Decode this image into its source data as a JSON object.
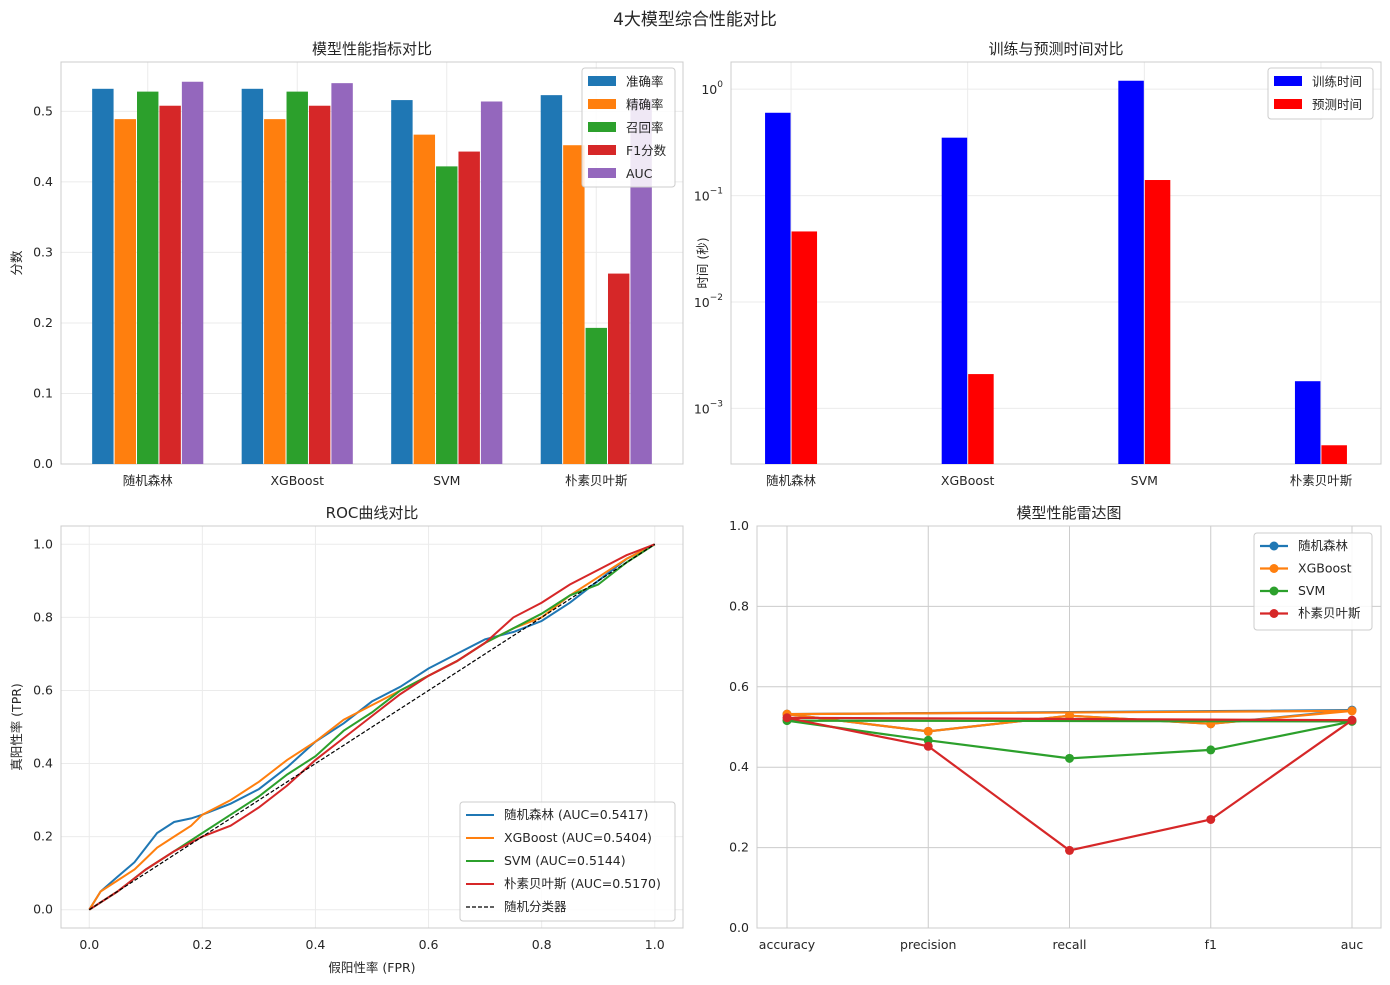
{
  "figure": {
    "title": "4大模型综合性能对比"
  },
  "chart_data": [
    {
      "type": "bar",
      "title": "模型性能指标对比",
      "xlabel": "",
      "ylabel": "分数",
      "ylim": [
        0,
        0.57
      ],
      "yticks": [
        0.0,
        0.1,
        0.2,
        0.3,
        0.4,
        0.5
      ],
      "categories": [
        "随机森林",
        "XGBoost",
        "SVM",
        "朴素贝叶斯"
      ],
      "legend_position": "top-right",
      "grid": true,
      "series": [
        {
          "name": "准确率",
          "color": "#1f77b4",
          "values": [
            0.532,
            0.532,
            0.516,
            0.523
          ]
        },
        {
          "name": "精确率",
          "color": "#ff7f0e",
          "values": [
            0.489,
            0.489,
            0.467,
            0.452
          ]
        },
        {
          "name": "召回率",
          "color": "#2ca02c",
          "values": [
            0.528,
            0.528,
            0.422,
            0.193
          ]
        },
        {
          "name": "F1分数",
          "color": "#d62728",
          "values": [
            0.508,
            0.508,
            0.443,
            0.27
          ]
        },
        {
          "name": "AUC",
          "color": "#9467bd",
          "values": [
            0.542,
            0.54,
            0.514,
            0.517
          ]
        }
      ]
    },
    {
      "type": "bar",
      "title": "训练与预测时间对比",
      "xlabel": "",
      "ylabel": "时间 (秒)",
      "yscale": "log",
      "ylim": [
        0.0003,
        1.8
      ],
      "yticks": [
        0.001,
        0.01,
        0.1,
        1
      ],
      "ytick_labels": [
        {
          "base": "10",
          "exp": "−3"
        },
        {
          "base": "10",
          "exp": "−2"
        },
        {
          "base": "10",
          "exp": "−1"
        },
        {
          "base": "10",
          "exp": "0"
        }
      ],
      "categories": [
        "随机森林",
        "XGBoost",
        "SVM",
        "朴素贝叶斯"
      ],
      "legend_position": "top-right",
      "grid": true,
      "series": [
        {
          "name": "训练时间",
          "color": "#0000ff",
          "values": [
            0.6,
            0.35,
            1.2,
            0.0018
          ]
        },
        {
          "name": "预测时间",
          "color": "#ff0000",
          "values": [
            0.046,
            0.0021,
            0.14,
            0.00045
          ]
        }
      ]
    },
    {
      "type": "line",
      "title": "ROC曲线对比",
      "xlabel": "假阳性率 (FPR)",
      "ylabel": "真阳性率 (TPR)",
      "xlim": [
        -0.05,
        1.05
      ],
      "ylim": [
        -0.05,
        1.05
      ],
      "xticks": [
        0.0,
        0.2,
        0.4,
        0.6,
        0.8,
        1.0
      ],
      "yticks": [
        0.0,
        0.2,
        0.4,
        0.6,
        0.8,
        1.0
      ],
      "legend_position": "bottom-right",
      "grid": true,
      "series": [
        {
          "name": "随机森林 (AUC=0.5417)",
          "color": "#1f77b4",
          "dash": "solid",
          "x": [
            0,
            0.02,
            0.05,
            0.08,
            0.1,
            0.12,
            0.15,
            0.18,
            0.2,
            0.25,
            0.3,
            0.35,
            0.4,
            0.45,
            0.5,
            0.55,
            0.6,
            0.65,
            0.7,
            0.75,
            0.8,
            0.85,
            0.9,
            0.95,
            1.0
          ],
          "y": [
            0,
            0.05,
            0.09,
            0.13,
            0.17,
            0.21,
            0.24,
            0.25,
            0.26,
            0.29,
            0.33,
            0.39,
            0.46,
            0.51,
            0.57,
            0.61,
            0.66,
            0.7,
            0.74,
            0.76,
            0.79,
            0.84,
            0.9,
            0.96,
            1.0
          ]
        },
        {
          "name": "XGBoost (AUC=0.5404)",
          "color": "#ff7f0e",
          "dash": "solid",
          "x": [
            0,
            0.02,
            0.05,
            0.08,
            0.1,
            0.12,
            0.15,
            0.18,
            0.2,
            0.25,
            0.3,
            0.35,
            0.4,
            0.45,
            0.5,
            0.55,
            0.6,
            0.65,
            0.7,
            0.75,
            0.8,
            0.85,
            0.9,
            0.95,
            1.0
          ],
          "y": [
            0,
            0.05,
            0.08,
            0.11,
            0.14,
            0.17,
            0.2,
            0.23,
            0.26,
            0.3,
            0.35,
            0.41,
            0.46,
            0.52,
            0.56,
            0.6,
            0.64,
            0.68,
            0.73,
            0.77,
            0.8,
            0.86,
            0.91,
            0.96,
            1.0
          ]
        },
        {
          "name": "SVM (AUC=0.5144)",
          "color": "#2ca02c",
          "dash": "solid",
          "x": [
            0,
            0.05,
            0.1,
            0.15,
            0.2,
            0.25,
            0.3,
            0.35,
            0.4,
            0.45,
            0.5,
            0.55,
            0.6,
            0.65,
            0.7,
            0.75,
            0.8,
            0.85,
            0.9,
            0.95,
            1.0
          ],
          "y": [
            0,
            0.05,
            0.11,
            0.16,
            0.21,
            0.26,
            0.31,
            0.37,
            0.42,
            0.49,
            0.54,
            0.6,
            0.64,
            0.68,
            0.73,
            0.77,
            0.81,
            0.86,
            0.89,
            0.95,
            1.0
          ]
        },
        {
          "name": "朴素贝叶斯 (AUC=0.5170)",
          "color": "#d62728",
          "dash": "solid",
          "x": [
            0,
            0.05,
            0.1,
            0.15,
            0.2,
            0.25,
            0.3,
            0.35,
            0.4,
            0.45,
            0.5,
            0.55,
            0.6,
            0.65,
            0.7,
            0.75,
            0.8,
            0.85,
            0.9,
            0.95,
            1.0
          ],
          "y": [
            0,
            0.05,
            0.11,
            0.16,
            0.2,
            0.23,
            0.28,
            0.34,
            0.41,
            0.47,
            0.53,
            0.59,
            0.64,
            0.68,
            0.73,
            0.8,
            0.84,
            0.89,
            0.93,
            0.97,
            1.0
          ]
        },
        {
          "name": "随机分类器",
          "color": "#000000",
          "dash": "dashed",
          "x": [
            0,
            1
          ],
          "y": [
            0,
            1
          ]
        }
      ]
    },
    {
      "type": "line",
      "title": "模型性能雷达图",
      "xlabel": "",
      "ylabel": "",
      "categories": [
        "accuracy",
        "precision",
        "recall",
        "f1",
        "auc"
      ],
      "ylim": [
        0,
        1.0
      ],
      "yticks": [
        0.0,
        0.2,
        0.4,
        0.6,
        0.8,
        1.0
      ],
      "legend_position": "top-right",
      "grid": true,
      "closed": true,
      "series": [
        {
          "name": "随机森林",
          "color": "#1f77b4",
          "values": [
            0.532,
            0.489,
            0.528,
            0.508,
            0.542
          ]
        },
        {
          "name": "XGBoost",
          "color": "#ff7f0e",
          "values": [
            0.532,
            0.489,
            0.528,
            0.508,
            0.54
          ]
        },
        {
          "name": "SVM",
          "color": "#2ca02c",
          "values": [
            0.516,
            0.467,
            0.422,
            0.443,
            0.514
          ]
        },
        {
          "name": "朴素贝叶斯",
          "color": "#d62728",
          "values": [
            0.523,
            0.452,
            0.193,
            0.27,
            0.517
          ]
        }
      ]
    }
  ]
}
